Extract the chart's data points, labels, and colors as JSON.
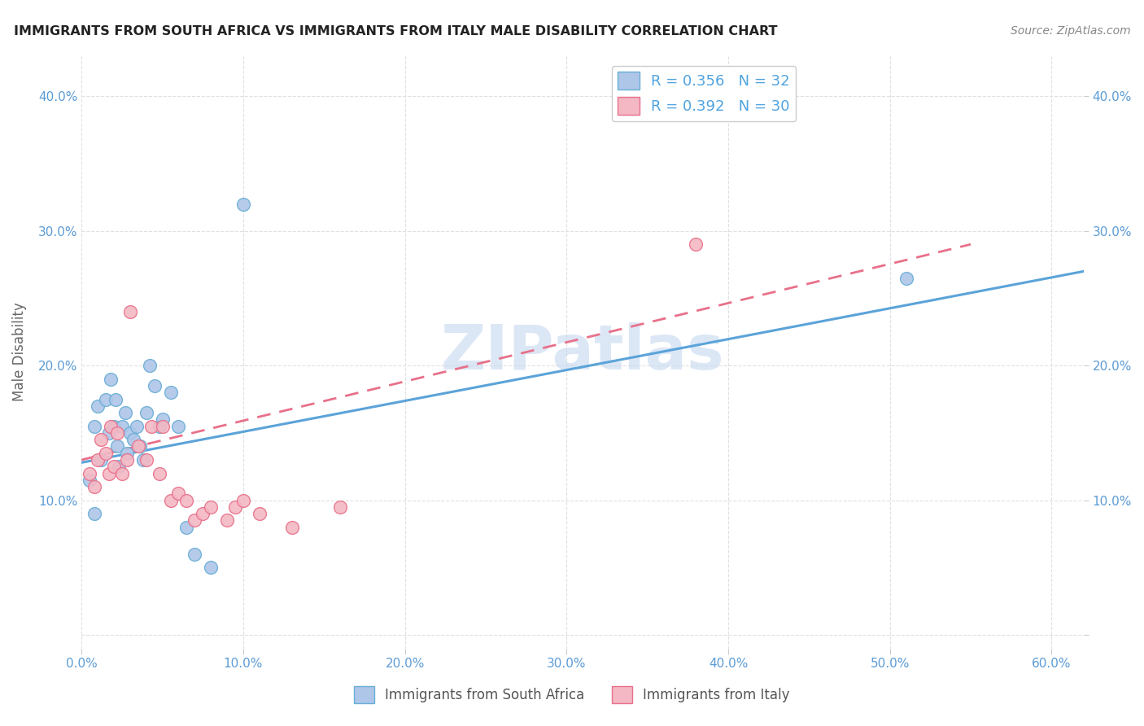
{
  "title": "IMMIGRANTS FROM SOUTH AFRICA VS IMMIGRANTS FROM ITALY MALE DISABILITY CORRELATION CHART",
  "source": "Source: ZipAtlas.com",
  "ylabel": "Male Disability",
  "xlim": [
    0.0,
    0.62
  ],
  "ylim": [
    -0.01,
    0.43
  ],
  "xticks": [
    0.0,
    0.1,
    0.2,
    0.3,
    0.4,
    0.5,
    0.6
  ],
  "yticks": [
    0.0,
    0.1,
    0.2,
    0.3,
    0.4
  ],
  "xticklabels": [
    "0.0%",
    "10.0%",
    "20.0%",
    "30.0%",
    "40.0%",
    "50.0%",
    "60.0%"
  ],
  "yticklabels_left": [
    "",
    "10.0%",
    "20.0%",
    "30.0%",
    "40.0%"
  ],
  "yticklabels_right": [
    "",
    "10.0%",
    "20.0%",
    "30.0%",
    "40.0%"
  ],
  "series1_label": "Immigrants from South Africa",
  "series2_label": "Immigrants from Italy",
  "R1": 0.356,
  "N1": 32,
  "R2": 0.392,
  "N2": 30,
  "color1": "#aec6e8",
  "color2": "#f4b8c4",
  "edge1_color": "#6aaed6",
  "edge2_color": "#e8708a",
  "line1_color": "#5ba3d9",
  "line2_color": "#e8708a",
  "scatter1_x": [
    0.005,
    0.008,
    0.01,
    0.012,
    0.015,
    0.017,
    0.018,
    0.02,
    0.021,
    0.022,
    0.023,
    0.025,
    0.027,
    0.028,
    0.03,
    0.032,
    0.034,
    0.036,
    0.038,
    0.04,
    0.042,
    0.045,
    0.048,
    0.05,
    0.055,
    0.06,
    0.065,
    0.07,
    0.08,
    0.1,
    0.51,
    0.008
  ],
  "scatter1_y": [
    0.115,
    0.09,
    0.17,
    0.13,
    0.175,
    0.15,
    0.19,
    0.155,
    0.175,
    0.14,
    0.125,
    0.155,
    0.165,
    0.135,
    0.15,
    0.145,
    0.155,
    0.14,
    0.13,
    0.165,
    0.2,
    0.185,
    0.155,
    0.16,
    0.18,
    0.155,
    0.08,
    0.06,
    0.05,
    0.32,
    0.265,
    0.155
  ],
  "scatter2_x": [
    0.005,
    0.008,
    0.01,
    0.012,
    0.015,
    0.017,
    0.018,
    0.02,
    0.022,
    0.025,
    0.028,
    0.03,
    0.035,
    0.04,
    0.043,
    0.048,
    0.05,
    0.055,
    0.06,
    0.065,
    0.07,
    0.075,
    0.08,
    0.09,
    0.095,
    0.1,
    0.11,
    0.13,
    0.16,
    0.38
  ],
  "scatter2_y": [
    0.12,
    0.11,
    0.13,
    0.145,
    0.135,
    0.12,
    0.155,
    0.125,
    0.15,
    0.12,
    0.13,
    0.24,
    0.14,
    0.13,
    0.155,
    0.12,
    0.155,
    0.1,
    0.105,
    0.1,
    0.085,
    0.09,
    0.095,
    0.085,
    0.095,
    0.1,
    0.09,
    0.08,
    0.095,
    0.29
  ],
  "line1_x_start": 0.0,
  "line1_x_end": 0.62,
  "line1_y_start": 0.128,
  "line1_y_end": 0.27,
  "line2_x_start": 0.0,
  "line2_x_end": 0.55,
  "line2_y_start": 0.13,
  "line2_y_end": 0.29,
  "watermark": "ZIPatlas",
  "watermark_color": "#c5d8f0",
  "background_color": "#ffffff",
  "grid_color": "#e0e0e0"
}
